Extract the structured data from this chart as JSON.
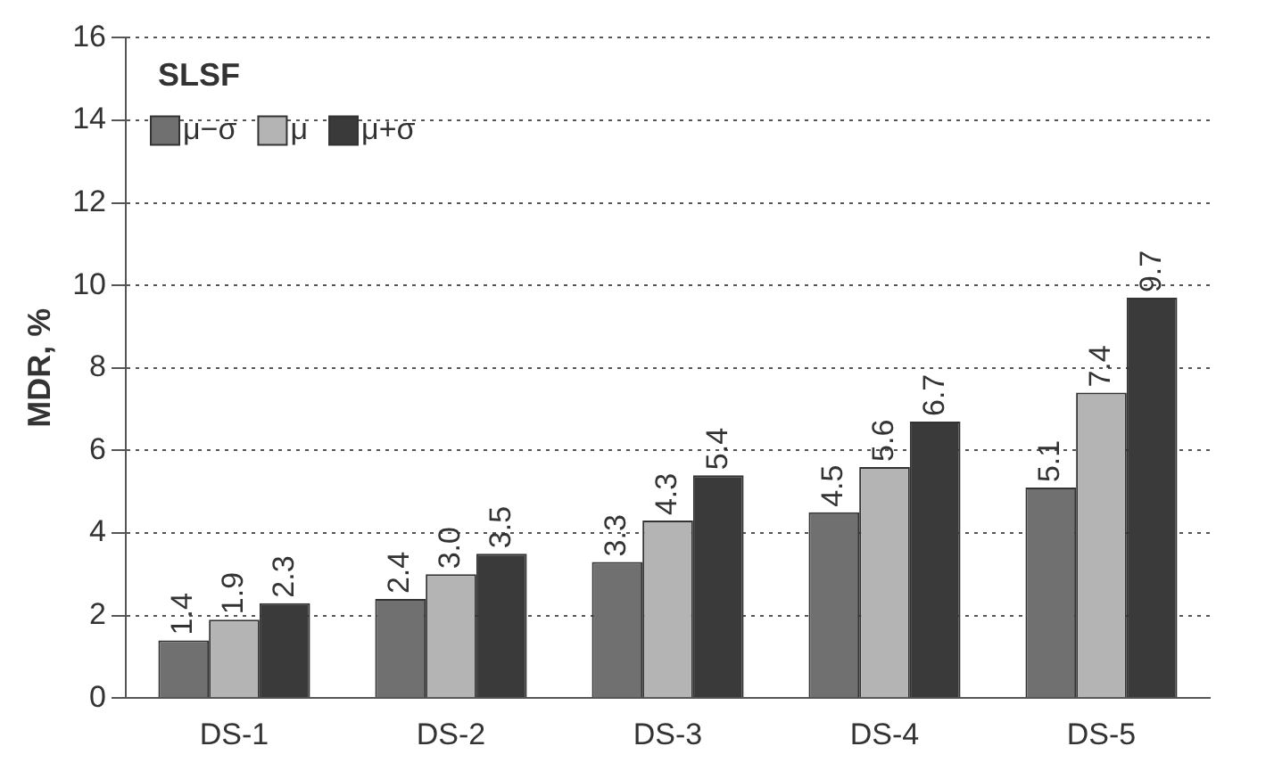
{
  "chart_data": {
    "type": "bar",
    "legend_title": "SLSF",
    "ylabel": "MDR, %",
    "categories": [
      "DS-1",
      "DS-2",
      "DS-3",
      "DS-4",
      "DS-5"
    ],
    "series": [
      {
        "name": "μ−σ",
        "color": "#707070",
        "values": [
          1.4,
          2.4,
          3.3,
          4.5,
          5.1
        ],
        "value_labels": [
          "1.4",
          "2.4",
          "3.3",
          "4.5",
          "5.1"
        ]
      },
      {
        "name": "μ",
        "color": "#b4b4b4",
        "values": [
          1.9,
          3,
          4.3,
          5.6,
          7.4
        ],
        "value_labels": [
          "1.9",
          "3.0",
          "4.3",
          "5.6",
          "7.4"
        ]
      },
      {
        "name": "μ+σ",
        "color": "#3a3a3a",
        "values": [
          2.3,
          3.5,
          5.4,
          6.7,
          9.7
        ],
        "value_labels": [
          "2.3",
          "3.5",
          "5.4",
          "6.7",
          "9.7"
        ]
      }
    ],
    "ylim": [
      0,
      16
    ],
    "yticks": [
      0,
      2,
      4,
      6,
      8,
      10,
      12,
      14,
      16
    ],
    "grid": "y",
    "legend": "top left"
  }
}
